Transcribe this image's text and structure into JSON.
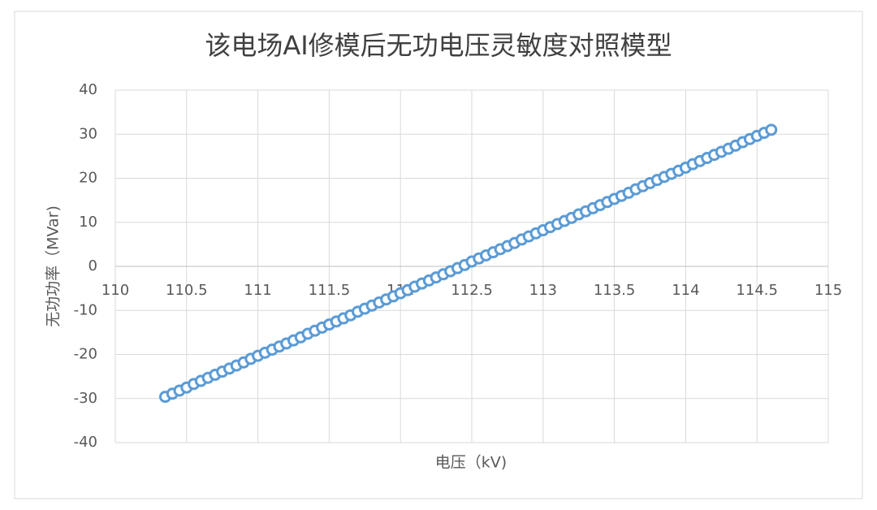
{
  "chart_data": {
    "type": "scatter",
    "title": "该电场AI修模后无功电压灵敏度对照模型",
    "x_label": "电压（kV)",
    "y_label": "无功功率（MVar)",
    "xlim": [
      110,
      115
    ],
    "xticks": [
      110,
      110.5,
      111,
      111.5,
      112,
      112.5,
      113,
      113.5,
      114,
      114.5,
      115
    ],
    "ylim": [
      -40,
      40
    ],
    "yticks": [
      -40,
      -30,
      -20,
      -10,
      0,
      10,
      20,
      30,
      40
    ],
    "grid": true,
    "series": [
      {
        "color": "#5b9bd5",
        "x": [
          110.35,
          110.4,
          110.45,
          110.5,
          110.55,
          110.6,
          110.65,
          110.7,
          110.75,
          110.8,
          110.85,
          110.9,
          110.95,
          111,
          111.05,
          111.1,
          111.15,
          111.2,
          111.25,
          111.3,
          111.35,
          111.4,
          111.45,
          111.5,
          111.55,
          111.6,
          111.65,
          111.7,
          111.75,
          111.8,
          111.85,
          111.9,
          111.95,
          112,
          112.05,
          112.1,
          112.15,
          112.2,
          112.25,
          112.3,
          112.35,
          112.4,
          112.45,
          112.5,
          112.55,
          112.6,
          112.65,
          112.7,
          112.75,
          112.8,
          112.85,
          112.9,
          112.95,
          113,
          113.05,
          113.1,
          113.15,
          113.2,
          113.25,
          113.3,
          113.35,
          113.4,
          113.45,
          113.5,
          113.55,
          113.6,
          113.65,
          113.7,
          113.75,
          113.8,
          113.85,
          113.9,
          113.95,
          114,
          114.05,
          114.1,
          114.15,
          114.2,
          114.25,
          114.3,
          114.35,
          114.4,
          114.45,
          114.5,
          114.55,
          114.6
        ],
        "values": [
          -29.6,
          -28.9,
          -28.2,
          -27.5,
          -26.7,
          -26.0,
          -25.3,
          -24.6,
          -23.9,
          -23.2,
          -22.5,
          -21.8,
          -21.0,
          -20.3,
          -19.6,
          -18.9,
          -18.2,
          -17.5,
          -16.8,
          -16.1,
          -15.3,
          -14.6,
          -13.9,
          -13.2,
          -12.5,
          -11.8,
          -11.1,
          -10.3,
          -9.6,
          -8.9,
          -8.2,
          -7.5,
          -6.8,
          -6.1,
          -5.4,
          -4.6,
          -3.9,
          -3.2,
          -2.5,
          -1.8,
          -1.1,
          -0.4,
          0.3,
          1.1,
          1.8,
          2.5,
          3.2,
          3.9,
          4.6,
          5.3,
          6.1,
          6.8,
          7.5,
          8.2,
          8.9,
          9.6,
          10.3,
          11.0,
          11.8,
          12.5,
          13.2,
          13.9,
          14.6,
          15.3,
          16.0,
          16.7,
          17.5,
          18.2,
          18.9,
          19.6,
          20.3,
          21.0,
          21.7,
          22.4,
          23.2,
          23.9,
          24.6,
          25.3,
          26.0,
          26.7,
          27.4,
          28.2,
          28.9,
          29.6,
          30.3,
          31.0
        ]
      }
    ]
  }
}
